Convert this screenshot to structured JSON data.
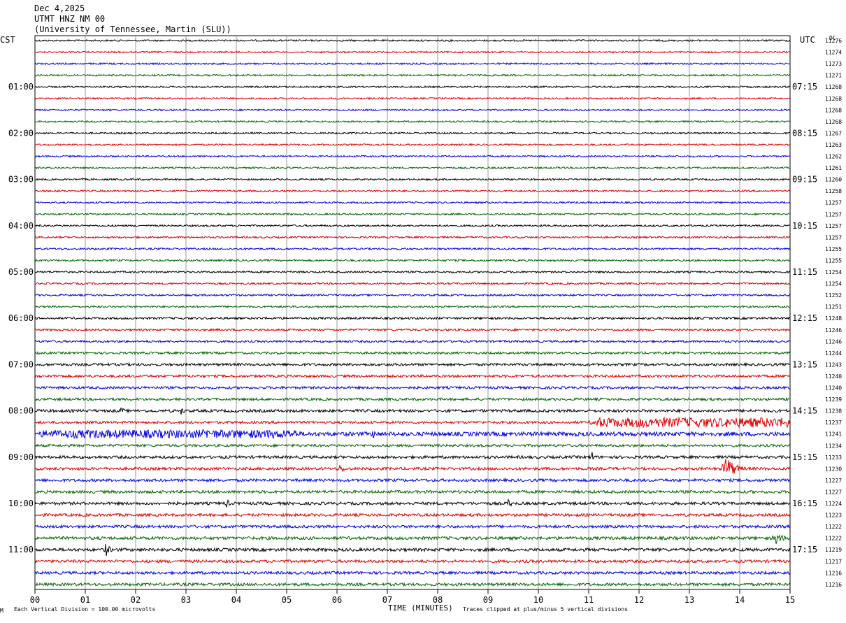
{
  "header": {
    "date": "Dec 4,2025",
    "station": "UTMT HNZ NM 00",
    "institution": "(University of Tennessee, Martin (SLU))"
  },
  "left_tz": "CST",
  "right_tz": "UTC",
  "dc_header": "DC",
  "footer": {
    "scale_note": "Each Vertical Division =  100.00 microvolts",
    "x_title": "TIME (MINUTES)",
    "clip_note": "Traces clipped at plus/minus 5 vertical divisions",
    "corner_mark": "M"
  },
  "chart_data": {
    "type": "line",
    "title": "",
    "xlabel": "TIME (MINUTES)",
    "ylabel": "",
    "xlim": [
      0,
      15
    ],
    "x_ticks": [
      "00",
      "01",
      "02",
      "03",
      "04",
      "05",
      "06",
      "07",
      "08",
      "09",
      "10",
      "11",
      "12",
      "13",
      "14",
      "15"
    ],
    "trace_count": 48,
    "trace_colors": [
      "#000000",
      "#dd0000",
      "#0000dd",
      "#006400"
    ],
    "left_time_labels": [
      "01:00",
      "02:00",
      "03:00",
      "04:00",
      "05:00",
      "06:00",
      "07:00",
      "08:00",
      "09:00",
      "10:00",
      "11:00"
    ],
    "right_time_labels": [
      "07:15",
      "08:15",
      "09:15",
      "10:15",
      "11:15",
      "12:15",
      "13:15",
      "14:15",
      "15:15",
      "16:15",
      "17:15"
    ],
    "dc_offsets": [
      "11276",
      "11274",
      "11273",
      "11271",
      "11268",
      "11268",
      "11268",
      "11268",
      "11267",
      "11263",
      "11262",
      "11261",
      "11260",
      "11258",
      "11257",
      "11257",
      "11257",
      "11257",
      "11255",
      "11255",
      "11254",
      "11254",
      "11252",
      "11251",
      "11248",
      "11246",
      "11246",
      "11244",
      "11243",
      "11240",
      "11240",
      "11239",
      "11238",
      "11237",
      "11241",
      "11234",
      "11233",
      "11230",
      "11227",
      "11227",
      "11224",
      "11223",
      "11222",
      "11222",
      "11219",
      "11217",
      "11216",
      "11216"
    ],
    "noise_amplitude": [
      1.2,
      1.2,
      1.2,
      1.2,
      1.2,
      1.2,
      1.2,
      1.2,
      1.2,
      1.2,
      1.2,
      1.2,
      1.2,
      1.2,
      1.2,
      1.2,
      1.3,
      1.3,
      1.3,
      1.3,
      1.3,
      1.3,
      1.3,
      1.3,
      1.5,
      1.5,
      1.5,
      1.6,
      1.8,
      1.8,
      1.8,
      1.8,
      2.0,
      1.8,
      3.0,
      1.8,
      2.0,
      2.0,
      2.0,
      2.0,
      2.0,
      2.0,
      2.0,
      2.2,
      2.2,
      2.0,
      2.0,
      2.0
    ],
    "events": [
      {
        "trace": 32,
        "minute": 1.7,
        "amplitude": 6,
        "duration": 0.2
      },
      {
        "trace": 32,
        "minute": 2.9,
        "amplitude": 6,
        "duration": 0.2
      },
      {
        "trace": 33,
        "minute": 11.0,
        "amplitude": 7,
        "duration": 4.0
      },
      {
        "trace": 34,
        "minute": 0.0,
        "amplitude": 6,
        "duration": 5.2
      },
      {
        "trace": 34,
        "minute": 3.4,
        "amplitude": 10,
        "duration": 0.35
      },
      {
        "trace": 34,
        "minute": 6.7,
        "amplitude": 8,
        "duration": 0.35
      },
      {
        "trace": 36,
        "minute": 11.05,
        "amplitude": 10,
        "duration": 0.15
      },
      {
        "trace": 37,
        "minute": 6.05,
        "amplitude": 8,
        "duration": 0.2
      },
      {
        "trace": 37,
        "minute": 13.7,
        "amplitude": 22,
        "duration": 0.4
      },
      {
        "trace": 40,
        "minute": 3.8,
        "amplitude": 8,
        "duration": 0.15
      },
      {
        "trace": 40,
        "minute": 9.4,
        "amplitude": 8,
        "duration": 0.15
      },
      {
        "trace": 43,
        "minute": 14.7,
        "amplitude": 11,
        "duration": 0.35
      },
      {
        "trace": 44,
        "minute": 1.4,
        "amplitude": 11,
        "duration": 0.2
      },
      {
        "trace": 46,
        "minute": 11.8,
        "amplitude": 8,
        "duration": 0.1
      }
    ]
  }
}
